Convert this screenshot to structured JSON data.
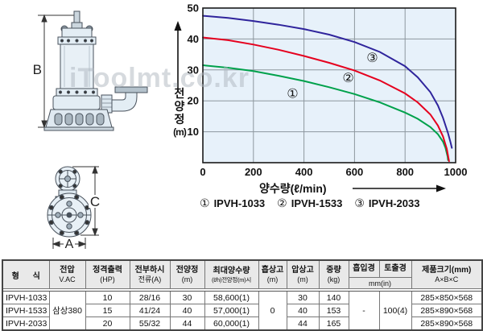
{
  "watermark": "iToolmt.co.kr",
  "drawings": {
    "dim_b": "B",
    "dim_c": "C",
    "dim_a": "A"
  },
  "chart": {
    "ylabel_chars": [
      "전",
      "양",
      "정"
    ],
    "ylabel_unit": "(m)",
    "xlabel": "양수량(ℓ/min)",
    "legend": [
      {
        "marker": "①",
        "label": "IPVH-1033"
      },
      {
        "marker": "②",
        "label": "IPVH-1533"
      },
      {
        "marker": "③",
        "label": "IPVH-2033"
      }
    ]
  },
  "chart_data": {
    "type": "line",
    "title": "",
    "xlabel": "양수량(ℓ/min)",
    "ylabel": "전양정(m)",
    "xlim": [
      0,
      1000
    ],
    "ylim": [
      0,
      50
    ],
    "x_ticks": [
      0,
      200,
      400,
      600,
      800,
      1000
    ],
    "y_ticks": [
      10,
      20,
      30,
      40,
      50
    ],
    "grid": true,
    "plot_bg": "#e7f1fa",
    "grid_color": "#8d979e",
    "series": [
      {
        "name": "① IPVH-1033",
        "color": "#00a14b",
        "points": [
          [
            0,
            31.5
          ],
          [
            100,
            30.7
          ],
          [
            200,
            29.6
          ],
          [
            300,
            28.1
          ],
          [
            400,
            26.4
          ],
          [
            500,
            24.4
          ],
          [
            600,
            22.2
          ],
          [
            700,
            19.5
          ],
          [
            800,
            16.2
          ],
          [
            850,
            14.2
          ],
          [
            900,
            11.5
          ],
          [
            930,
            9.2
          ],
          [
            950,
            6.8
          ],
          [
            960,
            4.8
          ],
          [
            968,
            2.0
          ],
          [
            970,
            0.8
          ]
        ]
      },
      {
        "name": "② IPVH-1533",
        "color": "#e5001e",
        "points": [
          [
            0,
            40.5
          ],
          [
            100,
            39.6
          ],
          [
            200,
            38.2
          ],
          [
            300,
            36.5
          ],
          [
            400,
            34.5
          ],
          [
            500,
            32.3
          ],
          [
            600,
            29.8
          ],
          [
            700,
            26.6
          ],
          [
            800,
            22.4
          ],
          [
            850,
            19.5
          ],
          [
            900,
            15.6
          ],
          [
            930,
            12.0
          ],
          [
            950,
            8.5
          ],
          [
            965,
            4.5
          ],
          [
            974,
            0.5
          ]
        ]
      },
      {
        "name": "③ IPVH-2033",
        "color": "#2f249c",
        "points": [
          [
            0,
            47.5
          ],
          [
            100,
            46.8
          ],
          [
            200,
            45.8
          ],
          [
            300,
            44.6
          ],
          [
            400,
            43.2
          ],
          [
            500,
            41.4
          ],
          [
            600,
            39.0
          ],
          [
            700,
            35.8
          ],
          [
            800,
            31.2
          ],
          [
            850,
            27.6
          ],
          [
            900,
            22.8
          ],
          [
            930,
            18.5
          ],
          [
            950,
            14.5
          ],
          [
            970,
            9.5
          ],
          [
            980,
            6.5
          ],
          [
            985,
            4.8
          ]
        ]
      }
    ],
    "annotations": [
      {
        "text": "①",
        "x": 355,
        "y": 21
      },
      {
        "text": "②",
        "x": 575,
        "y": 26
      },
      {
        "text": "③",
        "x": 670,
        "y": 32.5
      }
    ],
    "legend_position": "bottom"
  },
  "table": {
    "headers": {
      "model": "형 식",
      "voltage": [
        "전압",
        "V.AC"
      ],
      "output": [
        "정격출력",
        "(HP)"
      ],
      "current": [
        "전부하시",
        "전류(A)"
      ],
      "head": [
        "전양정",
        "(m)"
      ],
      "max_flow": [
        "최대양수량",
        "(ℓ/h)전양정(m)시"
      ],
      "suction_lift": [
        "흡상고",
        "(m)"
      ],
      "discharge_lift": [
        "압상고",
        "(m)"
      ],
      "weight": [
        "중량",
        "(kg)"
      ],
      "suction_dia": "흡입경",
      "discharge_dia": "토출경",
      "dia_unit": "mm(in)",
      "size": [
        "제품크기(mm)",
        "A×B×C"
      ]
    },
    "rows": [
      {
        "model": "IPVH-1033",
        "voltage": "삼상380",
        "hp": "10",
        "current": "28/16",
        "head": "30",
        "max_flow": "58,600(1)",
        "suction_lift": "0",
        "discharge_lift": "30",
        "weight": "140",
        "suction_dia": "-",
        "discharge_dia": "100(4)",
        "size": "285×850×568"
      },
      {
        "model": "IPVH-1533",
        "hp": "15",
        "current": "41/24",
        "head": "40",
        "max_flow": "57,000(1)",
        "discharge_lift": "40",
        "weight": "153",
        "size": "285×890×568"
      },
      {
        "model": "IPVH-2033",
        "hp": "20",
        "current": "55/32",
        "head": "44",
        "max_flow": "60,000(1)",
        "discharge_lift": "44",
        "weight": "165",
        "size": "285×890×568"
      }
    ]
  }
}
